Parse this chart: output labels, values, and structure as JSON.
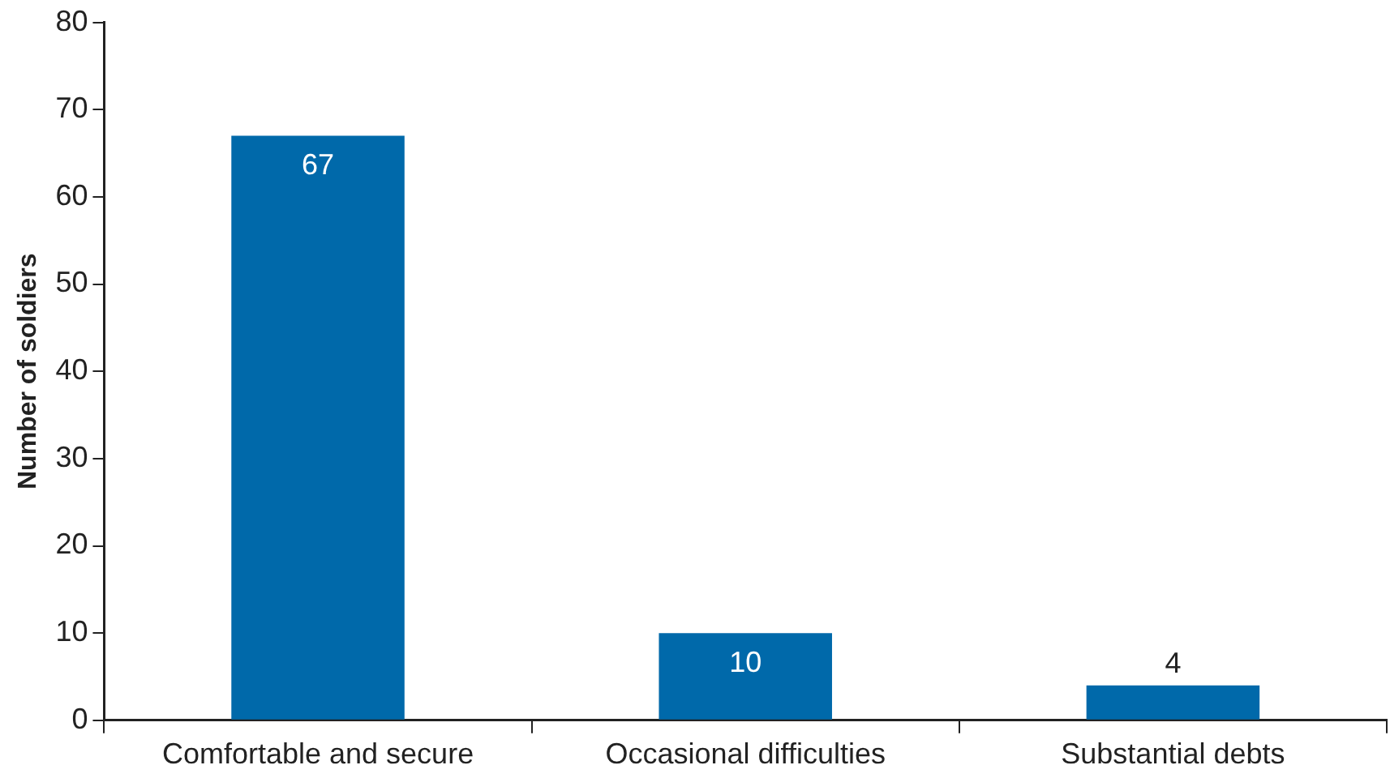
{
  "chart_data": {
    "type": "bar",
    "ylabel": "Number of soldiers",
    "categories": [
      "Comfortable and secure",
      "Occasional difficulties",
      "Substantial debts"
    ],
    "values": [
      67,
      10,
      4
    ],
    "color": "#0069aa",
    "ylim": [
      0,
      80
    ],
    "yticks": [
      0,
      10,
      20,
      30,
      40,
      50,
      60,
      70,
      80
    ],
    "grid": false,
    "data_labels": true
  }
}
